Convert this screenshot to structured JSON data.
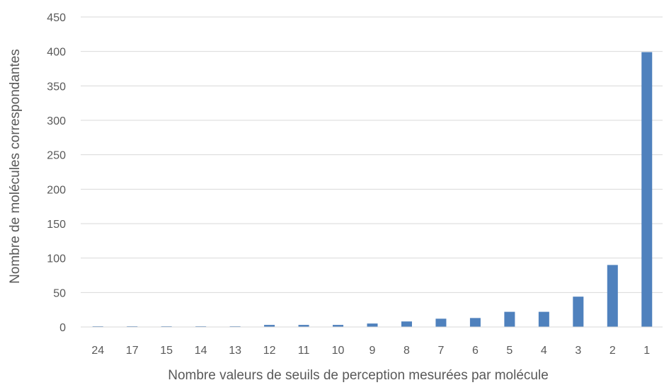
{
  "chart_data": {
    "type": "bar",
    "title": "",
    "xlabel": "Nombre valeurs de seuils de perception mesurées par molécule",
    "ylabel": "Nombre de molécules correspondantes",
    "categories": [
      "24",
      "17",
      "15",
      "14",
      "13",
      "12",
      "11",
      "10",
      "9",
      "8",
      "7",
      "6",
      "5",
      "4",
      "3",
      "2",
      "1"
    ],
    "values": [
      1,
      1,
      1,
      1,
      1,
      3,
      3,
      3,
      5,
      8,
      12,
      13,
      22,
      22,
      44,
      90,
      399
    ],
    "ylim": [
      0,
      450
    ],
    "yticks": [
      "0",
      "50",
      "100",
      "150",
      "200",
      "250",
      "300",
      "350",
      "400",
      "450"
    ],
    "grid": true,
    "legend": "none",
    "bar_color": "#4f81bd"
  }
}
